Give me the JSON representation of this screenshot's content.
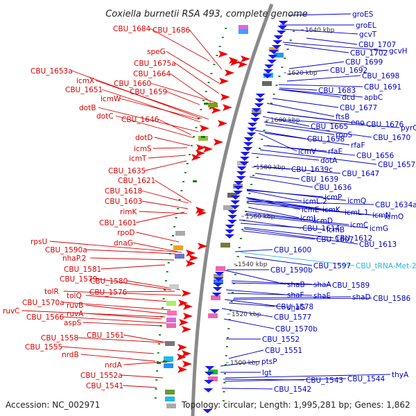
{
  "header": {
    "title": "Coxiella burnetii RSA 493, complete genome"
  },
  "footer": {
    "accession": "Accession: NC_002971",
    "summary": "Topology: circular; Length: 1,995,281 bp; Genes: 1,862"
  },
  "colors": {
    "left_labels": "#dd0000",
    "right_labels": "#0000cc",
    "rna_label": "#22b8dd",
    "backbone": "#8a8a8a",
    "tick_dot": "#2a8a2a"
  },
  "ticks": [
    "1640 kbp",
    "1620 kbp",
    "1600 kbp",
    "1580 kbp",
    "1560 kbp",
    "1540 kbp",
    "1520 kbp",
    "1500 kbp"
  ],
  "left_labels": [
    "CBU_1684",
    "CBU_1686",
    "speG",
    "CBU_1675a",
    "CBU_1664",
    "CBU_1653a",
    "icmX",
    "CBU_1660",
    "CBU_1651",
    "CBU_1659",
    "icmW",
    "dotB",
    "dotC",
    "CBU_1646",
    "dotD",
    "icmS",
    "icmT",
    "CBU_1635",
    "CBU_1621",
    "CBU_1618",
    "CBU_1603",
    "rimK",
    "CBU_1601",
    "rpoD",
    "dnaG",
    "rpsU",
    "CBU_1590a",
    "nhaP.2",
    "CBU_1581",
    "CBU_1579",
    "CBU_1580",
    "CBU_1576",
    "tolR",
    "tolQ",
    "CBU_1570a",
    "ruvB",
    "ruvC",
    "CBU_1566",
    "ruvA",
    "aspS",
    "CBU_1561",
    "CBU_1558",
    "CBU_1555",
    "nrdB",
    "nrdA",
    "CBU_1552a",
    "CBU_1541"
  ],
  "right_labels": [
    "groES",
    "groEL",
    "gcvT",
    "CBU_1707",
    "gcvH",
    "CBU_1702",
    "CBU_1699",
    "CBU_1692",
    "CBU_1698",
    "CBU_1691",
    "CBU_1683",
    "dcd",
    "apbC",
    "CBU_1677",
    "ftsB",
    "eno",
    "CBU_1676",
    "pyrG",
    "CBU_1665",
    "rpoS",
    "CBU_1670",
    "CBU_1658",
    "rfaF",
    "icmV",
    "rfaE",
    "CBU_1656",
    "dotA",
    "CBU_1657",
    "CBU_1639c",
    "CBU_1647",
    "CBU_1639",
    "CBU_1636",
    "icmP",
    "icmQ",
    "icmL.2",
    "icmE",
    "icmK",
    "CBU_1634a",
    "icmL.1",
    "icmN",
    "icmO",
    "icmJ",
    "icmD",
    "icmC",
    "icmG",
    "CBU_1614",
    "icmB",
    "CBU_1612",
    "CBU_1607",
    "CBU_1613",
    "CBU_1600",
    "CBU_1597",
    "CBU_1590b",
    "shaB",
    "shaA",
    "CBU_1589",
    "shaF",
    "shaE",
    "shaD",
    "CBU_1586",
    "shaG",
    "CBU_1578",
    "CBU_1577",
    "CBU_1570b",
    "CBU_1552",
    "CBU_1551",
    "ptsP",
    "lgt",
    "thyA",
    "CBU_1543",
    "CBU_1544",
    "CBU_1542"
  ],
  "rna_labels": [
    "CBU_tRNA-Met-2"
  ]
}
